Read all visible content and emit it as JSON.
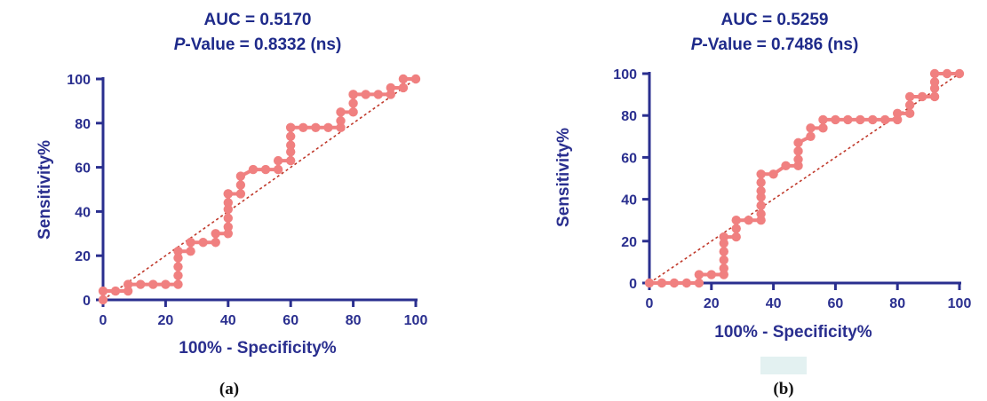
{
  "chart_data": [
    {
      "type": "line",
      "panel_label": "(a)",
      "title_line1": "AUC = 0.5170",
      "title_pvalue_italic": "P",
      "title_pvalue_rest": "-Value = 0.8332 (ns)",
      "xlabel": "100% - Specificity%",
      "ylabel": "Sensitivity%",
      "xlim": [
        0,
        100
      ],
      "ylim": [
        0,
        100
      ],
      "xticks": [
        0,
        20,
        40,
        60,
        80,
        100
      ],
      "yticks": [
        0,
        20,
        40,
        60,
        80,
        100
      ],
      "reference_line": true,
      "curve_color": "#f08080",
      "reference_color": "#c0392b",
      "axis_color": "#2a2f8f",
      "curve": {
        "x": [
          0,
          0,
          4,
          8,
          8,
          12,
          16,
          20,
          24,
          24,
          24,
          24,
          24,
          28,
          28,
          28,
          32,
          36,
          36,
          40,
          40,
          40,
          40,
          40,
          40,
          40,
          44,
          44,
          44,
          48,
          52,
          56,
          56,
          60,
          60,
          60,
          60,
          60,
          60,
          64,
          68,
          72,
          76,
          76,
          76,
          80,
          80,
          80,
          80,
          84,
          88,
          92,
          92,
          96,
          96,
          100
        ],
        "y": [
          0,
          4,
          4,
          4,
          7,
          7,
          7,
          7,
          7,
          11,
          15,
          19,
          22,
          22,
          26,
          26,
          26,
          26,
          30,
          30,
          33,
          37,
          41,
          44,
          48,
          48,
          48,
          52,
          56,
          59,
          59,
          59,
          63,
          63,
          67,
          70,
          74,
          78,
          78,
          78,
          78,
          78,
          78,
          81,
          85,
          85,
          89,
          93,
          93,
          93,
          93,
          93,
          96,
          96,
          100,
          100
        ]
      }
    },
    {
      "type": "line",
      "panel_label": "(b)",
      "title_line1": "AUC = 0.5259",
      "title_pvalue_italic": "P",
      "title_pvalue_rest": "-Value = 0.7486 (ns)",
      "xlabel": "100% - Specificity%",
      "ylabel": "Sensitivity%",
      "xlim": [
        0,
        100
      ],
      "ylim": [
        0,
        100
      ],
      "xticks": [
        0,
        20,
        40,
        60,
        80,
        100
      ],
      "yticks": [
        0,
        20,
        40,
        60,
        80,
        100
      ],
      "reference_line": true,
      "curve_color": "#f08080",
      "reference_color": "#c0392b",
      "axis_color": "#2a2f8f",
      "curve": {
        "x": [
          0,
          4,
          8,
          12,
          16,
          16,
          20,
          24,
          24,
          24,
          24,
          24,
          24,
          28,
          28,
          28,
          32,
          36,
          36,
          36,
          36,
          36,
          36,
          36,
          40,
          44,
          48,
          48,
          48,
          48,
          52,
          52,
          56,
          56,
          60,
          64,
          68,
          72,
          76,
          80,
          80,
          84,
          84,
          84,
          88,
          92,
          92,
          92,
          92,
          96,
          100
        ],
        "y": [
          0,
          0,
          0,
          0,
          0,
          4,
          4,
          4,
          7,
          11,
          15,
          19,
          22,
          22,
          26,
          30,
          30,
          30,
          33,
          37,
          41,
          44,
          48,
          52,
          52,
          56,
          56,
          59,
          63,
          67,
          70,
          74,
          74,
          78,
          78,
          78,
          78,
          78,
          78,
          78,
          81,
          81,
          85,
          89,
          89,
          89,
          93,
          96,
          100,
          100,
          100
        ]
      }
    }
  ]
}
